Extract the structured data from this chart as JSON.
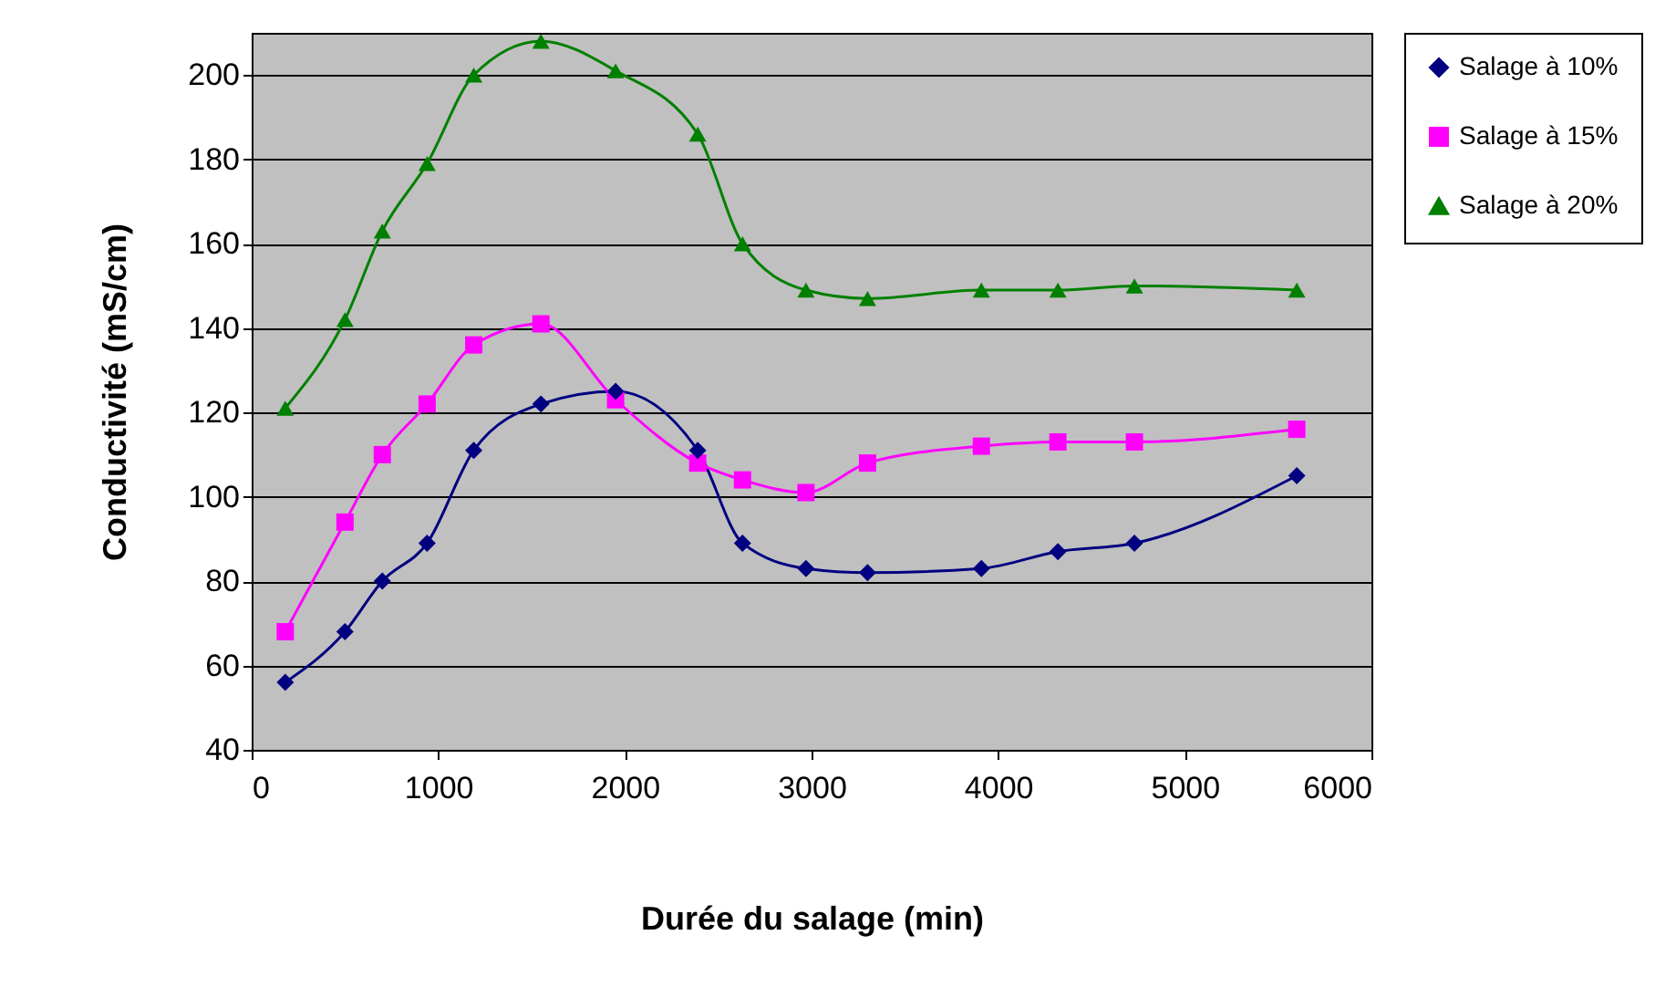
{
  "chart_data": {
    "type": "line",
    "xlabel": "Durée du salage (min)",
    "ylabel": "Conductivité (mS/cm)",
    "x": [
      180,
      500,
      700,
      940,
      1190,
      1550,
      1950,
      2390,
      2630,
      2970,
      3300,
      3910,
      4320,
      4730,
      5600
    ],
    "series": [
      {
        "name": "Salage à 10%",
        "color": "#000080",
        "marker": "diamond",
        "values": [
          56,
          68,
          80,
          89,
          111,
          122,
          125,
          111,
          89,
          83,
          82,
          83,
          87,
          89,
          105
        ]
      },
      {
        "name": "Salage à 15%",
        "color": "#ff00ff",
        "marker": "square",
        "values": [
          68,
          94,
          110,
          122,
          136,
          141,
          123,
          108,
          104,
          101,
          108,
          112,
          113,
          113,
          116
        ]
      },
      {
        "name": "Salage à 20%",
        "color": "#008000",
        "marker": "triangle",
        "values": [
          121,
          142,
          163,
          179,
          200,
          208,
          201,
          186,
          160,
          149,
          147,
          149,
          149,
          150,
          149
        ]
      }
    ],
    "xlim": [
      0,
      6000
    ],
    "xticks": [
      0,
      1000,
      2000,
      3000,
      4000,
      5000,
      6000
    ],
    "ylim": [
      40,
      210
    ],
    "yticks": [
      40,
      60,
      80,
      100,
      120,
      140,
      160,
      180,
      200
    ],
    "grid": "y",
    "legend": "right"
  }
}
